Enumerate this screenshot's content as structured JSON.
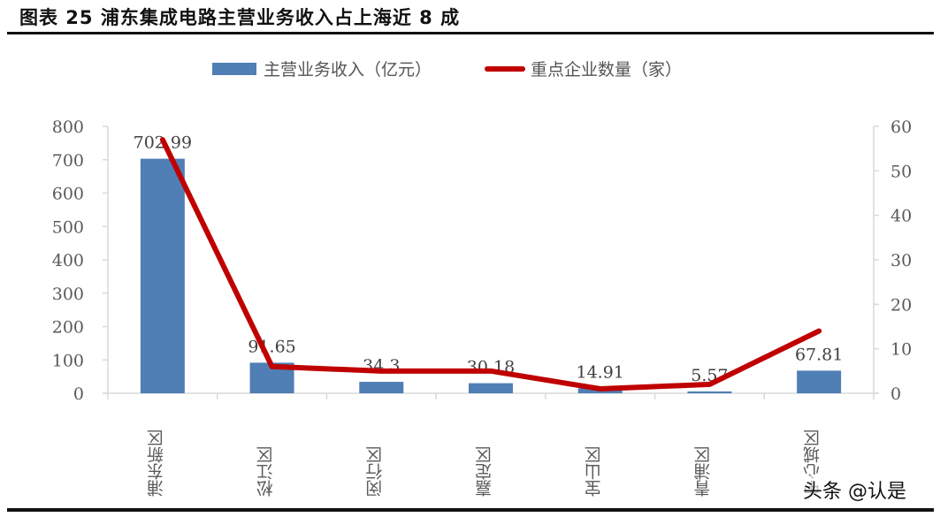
{
  "figure": {
    "title": "图表 25  浦东集成电路主营业务收入占上海近 8 成",
    "watermark": "头条 @认是"
  },
  "legend": {
    "bar_label": "主营业务收入（亿元）",
    "line_label": "重点企业数量（家）"
  },
  "colors": {
    "bar": "#4f7fb5",
    "line": "#c00000",
    "axis": "#d9d9d9",
    "text": "#595959"
  },
  "chart_data": {
    "type": "bar+line",
    "title": "浦东集成电路主营业务收入占上海近 8 成",
    "categories": [
      "浦东新区",
      "松江区",
      "闵行区",
      "嘉定区",
      "宝山区",
      "青浦区",
      "中心城区"
    ],
    "series": [
      {
        "name": "主营业务收入（亿元）",
        "type": "bar",
        "axis": "left",
        "values": [
          702.99,
          91.65,
          34.3,
          30.18,
          14.91,
          5.57,
          67.81
        ],
        "labels": [
          "702.99",
          "91.65",
          "34.3",
          "30.18",
          "14.91",
          "5.57",
          "67.81"
        ]
      },
      {
        "name": "重点企业数量（家）",
        "type": "line",
        "axis": "right",
        "values": [
          57,
          6,
          5,
          5,
          1,
          2,
          14
        ]
      }
    ],
    "ylim_left": [
      0,
      800
    ],
    "yticks_left": [
      "0",
      "100",
      "200",
      "300",
      "400",
      "500",
      "600",
      "700",
      "800"
    ],
    "ylim_right": [
      0,
      60
    ],
    "yticks_right": [
      "0",
      "10",
      "20",
      "30",
      "40",
      "50",
      "60"
    ],
    "xlabel": "",
    "ylabel": "",
    "grid": false,
    "legend_position": "top"
  }
}
